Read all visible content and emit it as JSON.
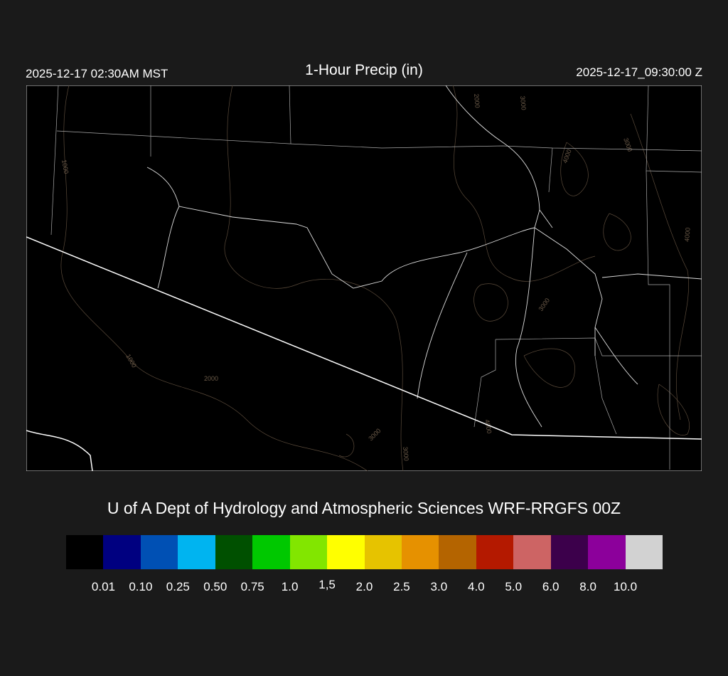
{
  "header": {
    "local_time": "2025-12-17 02:30AM MST",
    "title": "1-Hour Precip (in)",
    "utc_time": "2025-12-17_09:30:00 Z"
  },
  "map": {
    "background": "#000000",
    "border_color": "#ffffff",
    "contour_color": "#6b5a48",
    "contour_labels": [
      "1000",
      "1000",
      "2000",
      "2000",
      "3000",
      "3000",
      "3000",
      "3000",
      "4000",
      "4000",
      "4000",
      "3000",
      "4000"
    ]
  },
  "credit": "U of A Dept of Hydrology and Atmospheric Sciences WRF-RRGFS 00Z",
  "colorbar": {
    "colors": [
      "#000000",
      "#000080",
      "#0050b4",
      "#00b4f0",
      "#005000",
      "#00c800",
      "#82e600",
      "#ffff00",
      "#e6c300",
      "#e69100",
      "#b46400",
      "#b41900",
      "#cd6464",
      "#3c004b",
      "#8c009b",
      "#d2d2d2"
    ],
    "labels": [
      "0.01",
      "0.10",
      "0.25",
      "0.50",
      "0.75",
      "1.0",
      "1,5",
      "2.0",
      "2.5",
      "3.0",
      "4.0",
      "5.0",
      "6.0",
      "8.0",
      "10.0"
    ]
  }
}
